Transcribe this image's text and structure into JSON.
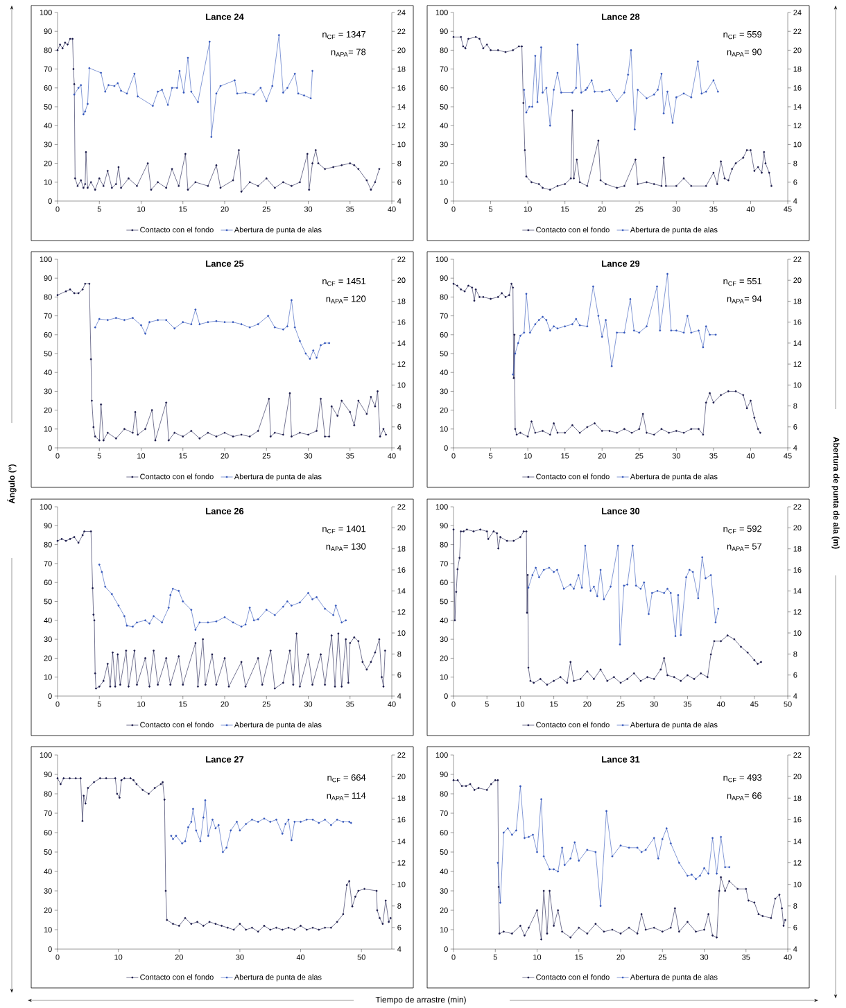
{
  "chart_data": [
    {
      "type": "line",
      "title": "Lance 24",
      "annotations": [
        "n$_{CF}$ = 1347",
        "n$_{APA}$= 78"
      ],
      "xlim": [
        0,
        40
      ],
      "xticks": [
        0,
        5,
        10,
        15,
        20,
        25,
        30,
        35,
        40
      ],
      "ylim": [
        0,
        100
      ],
      "yticks": [
        0,
        10,
        20,
        30,
        40,
        50,
        60,
        70,
        80,
        90,
        100
      ],
      "y2lim": [
        4,
        24
      ],
      "y2ticks": [
        4,
        6,
        8,
        10,
        12,
        14,
        16,
        18,
        20,
        22,
        24
      ],
      "legend": "bottom",
      "marker": "circle",
      "line_style": "solid",
      "series": [
        {
          "name": "Contacto con el fondo",
          "color": "#1a1a4a",
          "x": [
            0,
            0.3,
            0.6,
            0.9,
            1.2,
            1.5,
            1.8,
            1.9,
            2.0,
            2.1,
            2.4,
            2.8,
            3.1,
            3.3,
            3.4,
            3.6,
            4,
            4.5,
            5,
            5.5,
            6,
            6.5,
            7,
            7.3,
            7.6,
            8.5,
            9.5,
            10.8,
            11.2,
            12,
            13,
            13.7,
            14.5,
            15.3,
            15.6,
            16.5,
            18,
            19,
            19.5,
            21,
            21.7,
            22,
            23,
            24,
            25,
            26,
            27,
            28,
            29,
            29.9,
            30.1,
            30.5,
            30.9,
            31.2,
            32,
            33,
            34,
            35,
            35.5,
            36,
            37,
            37.5,
            38,
            38.5
          ],
          "values": [
            80,
            83,
            81,
            84,
            83,
            86,
            86,
            70,
            62,
            12,
            8,
            11,
            7,
            9,
            26,
            7,
            10,
            6,
            12,
            8,
            16,
            7,
            9,
            18,
            7,
            12,
            8,
            20,
            6,
            10,
            7,
            17,
            8,
            25,
            6,
            10,
            8,
            19,
            7,
            11,
            27,
            5,
            10,
            8,
            12,
            7,
            10,
            8,
            10,
            25,
            6,
            20,
            27,
            20,
            17,
            18,
            19,
            20,
            19,
            17,
            11,
            6,
            10,
            17
          ]
        },
        {
          "name": "Abertura de punta de alas",
          "color": "#3355bb",
          "axis": "y2",
          "x": [
            2.0,
            2.5,
            2.8,
            3.1,
            3.3,
            3.6,
            3.8,
            5.2,
            5.7,
            6.1,
            6.8,
            7.2,
            7.6,
            8.3,
            9.2,
            9.6,
            11.4,
            12,
            12.5,
            13.2,
            13.7,
            14.3,
            14.6,
            15.1,
            15.6,
            16,
            16.8,
            18.2,
            18.4,
            19,
            19.5,
            21.2,
            21.5,
            22.5,
            23.5,
            24.3,
            25,
            25.7,
            26.5,
            27,
            27.5,
            28.4,
            28.8,
            29.5,
            30.3,
            30.5
          ],
          "values": [
            15.3,
            16,
            16.3,
            13.2,
            13.5,
            14.3,
            18.1,
            17.6,
            15.6,
            16.3,
            16.2,
            16.5,
            15.7,
            15.4,
            17.5,
            15.1,
            14.1,
            15.6,
            15.8,
            14.2,
            16,
            16,
            17.8,
            15.5,
            19.2,
            15.6,
            14.5,
            20.9,
            10.8,
            15.4,
            16.2,
            16.8,
            15.4,
            15.5,
            15.3,
            16,
            14.6,
            16.2,
            21.6,
            15.5,
            16,
            17.5,
            15.4,
            15.2,
            14.9,
            17.8
          ]
        }
      ]
    },
    {
      "type": "line",
      "title": "Lance 28",
      "y2label": "Abertura de punta de ala (m)",
      "annotations": [
        "n$_{CF}$ = 559",
        "n$_{APA}$= 90"
      ],
      "xlim": [
        0,
        45
      ],
      "xticks": [
        0,
        5,
        10,
        15,
        20,
        25,
        30,
        35,
        40,
        45
      ],
      "ylim": [
        0,
        100
      ],
      "yticks": [
        0,
        10,
        20,
        30,
        40,
        50,
        60,
        70,
        80,
        90,
        100
      ],
      "y2lim": [
        4,
        24
      ],
      "y2ticks": [
        4,
        6,
        8,
        10,
        12,
        14,
        16,
        18,
        20,
        22,
        24
      ],
      "legend": "bottom",
      "marker": "circle",
      "line_style": "solid",
      "series": [
        {
          "name": "Contacto con el fondo",
          "color": "#1a1a4a",
          "x": [
            0,
            1,
            1.3,
            1.6,
            2,
            3,
            3.5,
            4,
            4.5,
            5,
            6,
            7,
            8,
            8.8,
            9.2,
            9.4,
            9.6,
            9.8,
            10.5,
            11.5,
            12,
            13,
            14,
            15,
            15.8,
            16,
            16.2,
            16.6,
            17,
            18,
            19.5,
            19.8,
            20.5,
            22,
            23,
            24.5,
            24.8,
            26,
            27,
            28,
            28.3,
            28.6,
            30,
            31,
            32,
            34,
            35,
            35.5,
            36,
            36.5,
            37,
            37.5,
            38,
            39,
            39.5,
            40,
            40.5,
            41,
            41.5,
            41.8,
            42,
            42.5,
            42.8
          ],
          "values": [
            87,
            87,
            82,
            81,
            86,
            87,
            86,
            81,
            83,
            80,
            80,
            79,
            80,
            82,
            82,
            52,
            27,
            13,
            10,
            9,
            7,
            6,
            8,
            9,
            12,
            48,
            12,
            22,
            10,
            8,
            32,
            11,
            9,
            7,
            8,
            22,
            9,
            10,
            9,
            8,
            23,
            8,
            8,
            12,
            8,
            8,
            15,
            9,
            21,
            12,
            11,
            17,
            20,
            23,
            27,
            27,
            16,
            18,
            15,
            26,
            20,
            15,
            8
          ]
        },
        {
          "name": "Abertura de punta de alas",
          "color": "#3355bb",
          "axis": "y2",
          "x": [
            9.5,
            9.8,
            10.2,
            10.6,
            11,
            11.3,
            11.8,
            12,
            12.5,
            13,
            13.5,
            14,
            14.5,
            16,
            16.5,
            16.7,
            17.2,
            17.8,
            18,
            18.6,
            19,
            20,
            21,
            22,
            23,
            23.5,
            23.9,
            24.4,
            24.8,
            26,
            27,
            27.5,
            28,
            28.3,
            28.8,
            29.5,
            30,
            31,
            32,
            32.9,
            33.4,
            34,
            35,
            35.6
          ],
          "values": [
            15.8,
            13.4,
            14,
            14,
            19.4,
            14.5,
            20.3,
            15.5,
            16,
            12,
            15.8,
            17.6,
            15.5,
            15.5,
            16,
            20.6,
            15.5,
            15.8,
            16,
            16.8,
            15.6,
            15.6,
            15.8,
            14.6,
            15.5,
            17.4,
            20,
            11.6,
            15.8,
            14.9,
            15.3,
            15.8,
            17.5,
            13.3,
            15.6,
            12.3,
            15,
            15.4,
            15,
            18.8,
            15.4,
            15.6,
            16.8,
            15.6
          ]
        }
      ]
    },
    {
      "type": "line",
      "title": "Lance 25",
      "ylabel": "Ángulo (°)",
      "annotations": [
        "n$_{CF}$ = 1451",
        "n$_{APA}$= 120"
      ],
      "xlim": [
        0,
        40
      ],
      "xticks": [
        0,
        5,
        10,
        15,
        20,
        25,
        30,
        35,
        40
      ],
      "ylim": [
        0,
        100
      ],
      "yticks": [
        0,
        10,
        20,
        30,
        40,
        50,
        60,
        70,
        80,
        90,
        100
      ],
      "y2lim": [
        4,
        22
      ],
      "y2ticks": [
        4,
        6,
        8,
        10,
        12,
        14,
        16,
        18,
        20,
        22
      ],
      "legend": "bottom",
      "marker": "circle",
      "line_style": "solid",
      "series": [
        {
          "name": "Contacto con el fondo",
          "color": "#1a1a4a",
          "x": [
            0,
            1,
            1.5,
            2,
            2.5,
            3,
            3.3,
            3.8,
            4,
            4.1,
            4.3,
            4.5,
            5,
            5.2,
            5.5,
            6,
            7,
            8,
            9,
            9.3,
            9.6,
            10.5,
            11.3,
            11.7,
            13,
            13.3,
            14,
            15,
            16,
            17,
            18,
            19,
            20,
            21,
            22,
            23,
            24,
            25.3,
            25.5,
            26,
            27,
            27.8,
            28,
            29,
            30,
            31,
            31.5,
            32,
            32.5,
            32.8,
            33.5,
            34,
            35,
            35.5,
            36,
            37,
            37.5,
            38,
            38.3,
            38.6,
            39,
            39.3
          ],
          "values": [
            81,
            83,
            84,
            82,
            82,
            84,
            87,
            87,
            47,
            25,
            11,
            6,
            4,
            23,
            4,
            8,
            5,
            10,
            8,
            19,
            7,
            10,
            20,
            4,
            24,
            4,
            8,
            6,
            9,
            5,
            8,
            6,
            8,
            6,
            7,
            6,
            9,
            26,
            6,
            8,
            7,
            29,
            6,
            8,
            7,
            9,
            26,
            6,
            6,
            22,
            17,
            25,
            19,
            12,
            25,
            18,
            27,
            22,
            30,
            6,
            10,
            7
          ]
        },
        {
          "name": "Abertura de punta de alas",
          "color": "#3355bb",
          "axis": "y2",
          "x": [
            4.5,
            5,
            6,
            7,
            8,
            9,
            10,
            10.5,
            11,
            12,
            13,
            14,
            15,
            16,
            16.5,
            17,
            18,
            19,
            20,
            21,
            22,
            23,
            24,
            25.2,
            26,
            27,
            27.5,
            28,
            28.4,
            29,
            29.7,
            30.2,
            30.6,
            31,
            31.5,
            32,
            32.5
          ],
          "values": [
            15.5,
            16.3,
            16.2,
            16.4,
            16.2,
            16.4,
            15.7,
            14.9,
            16,
            16.2,
            16.2,
            15.4,
            16,
            15.8,
            17.2,
            15.8,
            16,
            16.1,
            16,
            16,
            15.8,
            15.5,
            15.8,
            16.6,
            15.5,
            15.3,
            15.6,
            18.1,
            15.5,
            14.2,
            13,
            12.5,
            13.3,
            12.6,
            13.8,
            14,
            14
          ]
        }
      ]
    },
    {
      "type": "line",
      "title": "Lance 29",
      "annotations": [
        "n$_{CF}$ = 551",
        "n$_{APA}$= 94"
      ],
      "xlim": [
        0,
        45
      ],
      "xticks": [
        0,
        5,
        10,
        15,
        20,
        25,
        30,
        35,
        40,
        45
      ],
      "ylim": [
        0,
        100
      ],
      "yticks": [
        0,
        10,
        20,
        30,
        40,
        50,
        60,
        70,
        80,
        90,
        100
      ],
      "y2lim": [
        4,
        22
      ],
      "y2ticks": [
        4,
        6,
        8,
        10,
        12,
        14,
        16,
        18,
        20,
        22
      ],
      "legend": "bottom",
      "marker": "circle",
      "line_style": "solid",
      "series": [
        {
          "name": "Contacto con el fondo",
          "color": "#1a1a4a",
          "x": [
            0,
            0.5,
            1,
            1.5,
            2,
            2.5,
            2.8,
            3,
            3.5,
            4,
            5,
            6,
            6.5,
            7,
            7.5,
            7.8,
            8,
            8.1,
            8.2,
            8.3,
            8.5,
            9,
            10,
            10.5,
            11,
            12,
            13,
            13.5,
            14,
            15,
            16,
            17,
            18,
            19,
            20,
            21,
            22,
            23,
            24,
            25,
            25.5,
            26,
            27,
            28,
            29,
            30,
            31,
            32,
            33,
            33.6,
            34,
            34.5,
            35,
            36,
            37,
            38,
            39,
            39.5,
            40,
            40.5,
            41,
            41.3
          ],
          "values": [
            87,
            86,
            84,
            83,
            86,
            85,
            78,
            84,
            80,
            80,
            79,
            80,
            82,
            80,
            81,
            87,
            85,
            37,
            60,
            10,
            7,
            8,
            6,
            14,
            8,
            9,
            7,
            13,
            8,
            8,
            12,
            8,
            11,
            13,
            9,
            9,
            8,
            10,
            8,
            10,
            18,
            8,
            7,
            10,
            8,
            9,
            8,
            10,
            10,
            7,
            24,
            29,
            24,
            28,
            30,
            30,
            28,
            21,
            25,
            16,
            10,
            8
          ]
        },
        {
          "name": "Abertura de punta de alas",
          "color": "#3355bb",
          "axis": "y2",
          "x": [
            8,
            8.3,
            8.7,
            9,
            9.5,
            9.8,
            10.3,
            11,
            11.5,
            12,
            12.5,
            13,
            13.5,
            14,
            15,
            16,
            16.5,
            17,
            18,
            18.8,
            19.5,
            20,
            20.5,
            21.3,
            22,
            23,
            23.8,
            24.3,
            25,
            26,
            27.4,
            27.8,
            28.8,
            29.3,
            30,
            31,
            31.5,
            32,
            33,
            33.6,
            34,
            34.5,
            35.3
          ],
          "values": [
            11,
            13,
            14,
            14.7,
            15,
            18.7,
            15,
            15.8,
            16.2,
            16.5,
            16.2,
            15.2,
            15.6,
            15.4,
            15.6,
            15.8,
            16.3,
            15.7,
            15.6,
            19.4,
            16.6,
            14.6,
            16.2,
            11.8,
            15,
            15,
            18.2,
            15.2,
            15,
            15.6,
            19.4,
            15.2,
            20.6,
            15.2,
            15.2,
            15,
            16.6,
            15,
            15.2,
            13.6,
            15.6,
            14.8,
            14.8
          ]
        }
      ]
    },
    {
      "type": "line",
      "title": "Lance 26",
      "annotations": [
        "n$_{CF}$ = 1401",
        "n$_{APA}$= 130"
      ],
      "xlim": [
        0,
        40
      ],
      "xticks": [
        0,
        5,
        10,
        15,
        20,
        25,
        30,
        35,
        40
      ],
      "ylim": [
        0,
        100
      ],
      "yticks": [
        0,
        10,
        20,
        30,
        40,
        50,
        60,
        70,
        80,
        90,
        100
      ],
      "y2lim": [
        4,
        22
      ],
      "y2ticks": [
        4,
        6,
        8,
        10,
        12,
        14,
        16,
        18,
        20,
        22
      ],
      "legend": "bottom",
      "marker": "circle",
      "line_style": "solid",
      "series": [
        {
          "name": "Contacto con el fondo",
          "color": "#1a1a4a",
          "x": [
            0,
            0.5,
            1,
            1.5,
            2,
            2.5,
            3,
            3.2,
            4,
            4.2,
            4.3,
            4.4,
            4.5,
            4.6,
            5,
            5.5,
            6,
            6.3,
            6.6,
            6.9,
            7.2,
            7.5,
            8.2,
            8.5,
            9.2,
            9.5,
            10.5,
            11,
            11.5,
            12,
            13,
            13.5,
            14.5,
            15,
            16.5,
            16.8,
            17.4,
            17.7,
            18.5,
            19,
            20,
            20.5,
            22,
            22.5,
            24,
            24.5,
            25.5,
            26,
            27,
            27.8,
            28.2,
            28.6,
            29,
            30,
            30.5,
            31.5,
            32,
            32.8,
            33.2,
            33.6,
            34,
            34.5,
            34.8,
            35,
            35.5,
            36,
            36.5,
            37,
            37.5,
            38,
            38.5,
            38.8,
            39,
            39.2
          ],
          "values": [
            82,
            83,
            82,
            83,
            84,
            81,
            85,
            87,
            87,
            57,
            43,
            40,
            12,
            4,
            5,
            8,
            17,
            5,
            23,
            5,
            22,
            6,
            24,
            5,
            24,
            6,
            20,
            5,
            24,
            6,
            20,
            6,
            21,
            6,
            28,
            5,
            30,
            6,
            22,
            6,
            20,
            5,
            18,
            5,
            20,
            6,
            24,
            4,
            7,
            24,
            6,
            33,
            5,
            22,
            6,
            22,
            6,
            32,
            5,
            33,
            5,
            30,
            7,
            28,
            31,
            29,
            18,
            14,
            18,
            23,
            30,
            10,
            5,
            24
          ]
        },
        {
          "name": "Abertura de punta de alas",
          "color": "#3355bb",
          "axis": "y2",
          "x": [
            5,
            5.3,
            5.7,
            6.5,
            7.3,
            8,
            8.3,
            9,
            9.5,
            10.5,
            11,
            11.5,
            12.5,
            13.3,
            13.5,
            13.8,
            14.5,
            15,
            16,
            16.5,
            17,
            18,
            19,
            20,
            21,
            22,
            22.5,
            23,
            23.5,
            24,
            25,
            26,
            27,
            27.5,
            28,
            29,
            30,
            30.5,
            31,
            32,
            33,
            33.3,
            34,
            34.5
          ],
          "values": [
            16.5,
            15.8,
            14.4,
            13.7,
            12.6,
            11.6,
            10.7,
            10.6,
            11,
            11.2,
            10.9,
            11.6,
            11,
            12.4,
            13.6,
            14.2,
            14,
            13,
            12.2,
            10.3,
            11,
            11,
            11.1,
            11.5,
            11,
            10.6,
            10.8,
            12.4,
            11.2,
            11.3,
            12.2,
            11.7,
            12.5,
            13,
            12.6,
            12.9,
            13.8,
            13.2,
            13.4,
            12.3,
            11.7,
            12.6,
            11,
            11.2
          ]
        }
      ]
    },
    {
      "type": "line",
      "title": "Lance 30",
      "annotations": [
        "n$_{CF}$ = 592",
        "n$_{APA}$= 57"
      ],
      "xlim": [
        0,
        50
      ],
      "xticks": [
        0,
        5,
        10,
        15,
        20,
        25,
        30,
        35,
        40,
        45,
        50
      ],
      "ylim": [
        0,
        100
      ],
      "yticks": [
        0,
        10,
        20,
        30,
        40,
        50,
        60,
        70,
        80,
        90,
        100
      ],
      "y2lim": [
        4,
        22
      ],
      "y2ticks": [
        4,
        6,
        8,
        10,
        12,
        14,
        16,
        18,
        20,
        22
      ],
      "legend": "bottom",
      "marker": "circle",
      "line_style": "solid",
      "series": [
        {
          "name": "Contacto con el fondo",
          "color": "#1a1a4a",
          "x": [
            0,
            0.2,
            0.4,
            0.6,
            0.9,
            1.1,
            1.5,
            2,
            3,
            4,
            5,
            5.2,
            6,
            6.5,
            6.7,
            7,
            8,
            9,
            10,
            10.5,
            10.9,
            11,
            11.1,
            11.2,
            11.5,
            12,
            13,
            14,
            15,
            16,
            17,
            17.5,
            18,
            19,
            20,
            21,
            22,
            23,
            24,
            25,
            26,
            27,
            28,
            29,
            30,
            31,
            31.5,
            32,
            33,
            34,
            35,
            36,
            37,
            38,
            38.5,
            39,
            40,
            41,
            42,
            43,
            44,
            45,
            45.5,
            46
          ],
          "values": [
            88,
            40,
            55,
            67,
            73,
            87,
            87,
            88,
            87,
            88,
            87,
            83,
            87,
            86,
            78,
            84,
            82,
            82,
            84,
            87,
            87,
            44,
            64,
            15,
            8,
            7,
            9,
            6,
            8,
            10,
            7,
            18,
            8,
            9,
            13,
            9,
            14,
            8,
            10,
            7,
            9,
            12,
            8,
            10,
            9,
            14,
            20,
            11,
            10,
            8,
            11,
            9,
            12,
            10,
            22,
            29,
            29,
            32,
            30,
            26,
            23,
            19,
            17,
            18
          ]
        },
        {
          "name": "Abertura de punta de alas",
          "color": "#3355bb",
          "axis": "y2",
          "x": [
            11.2,
            11.8,
            12.3,
            12.8,
            13.5,
            14.3,
            15,
            15.5,
            16.5,
            17.5,
            18,
            18.7,
            19.2,
            19.7,
            20.5,
            21,
            21.5,
            22,
            22.5,
            23.5,
            24.6,
            24.9,
            25.5,
            26,
            26.8,
            27.3,
            28,
            28.5,
            29.2,
            29.7,
            30.5,
            31.5,
            32,
            32.5,
            33.2,
            33.6,
            34,
            34.8,
            35.3,
            35.8,
            36.6,
            37.2,
            37.7,
            38.5,
            39.2,
            39.6
          ],
          "values": [
            14.3,
            15.5,
            16.2,
            15.3,
            16,
            16.2,
            15.8,
            16,
            14.2,
            14.6,
            14.2,
            15.5,
            14.3,
            18.3,
            14,
            14.4,
            13.5,
            16,
            13.2,
            14.4,
            18.3,
            8.9,
            14.5,
            14.6,
            18.3,
            14.5,
            14.2,
            14.8,
            11.8,
            13.8,
            14,
            13.8,
            14.2,
            13.8,
            9.7,
            13.6,
            9.8,
            15.3,
            16,
            15.8,
            13.3,
            17.2,
            15.2,
            15.5,
            11,
            12.3
          ]
        }
      ]
    },
    {
      "type": "line",
      "title": "Lance 27",
      "xlabel": "Tiempo de arrastre (min)",
      "annotations": [
        "n$_{CF}$ = 664",
        "n$_{APA}$= 114"
      ],
      "xlim": [
        0,
        55
      ],
      "xticks": [
        0,
        10,
        20,
        30,
        40,
        50
      ],
      "ylim": [
        0,
        100
      ],
      "yticks": [
        0,
        10,
        20,
        30,
        40,
        50,
        60,
        70,
        80,
        90,
        100
      ],
      "y2lim": [
        4,
        22
      ],
      "y2ticks": [
        4,
        6,
        8,
        10,
        12,
        14,
        16,
        18,
        20,
        22
      ],
      "legend": "bottom",
      "marker": "circle",
      "line_style": "solid",
      "series": [
        {
          "name": "Contacto con el fondo",
          "color": "#1a1a4a",
          "x": [
            0,
            0.5,
            1,
            2,
            3,
            3.8,
            4.1,
            4.3,
            4.6,
            5,
            6,
            7,
            8,
            9.5,
            9.8,
            10.2,
            10.5,
            11,
            12,
            12.5,
            13,
            14,
            15,
            16,
            17,
            17.3,
            17.6,
            17.8,
            18,
            19,
            20,
            21,
            22,
            23,
            24,
            25,
            26,
            27,
            28,
            29,
            30,
            31,
            32,
            33,
            34,
            35,
            36,
            37,
            38,
            39,
            40,
            41,
            42,
            43,
            44,
            45,
            46,
            47,
            47.6,
            48,
            48.5,
            49,
            49.5,
            50.5,
            52.5,
            52.6,
            53,
            53.5,
            54,
            54.5,
            54.8
          ],
          "values": [
            88,
            85,
            88,
            88,
            88,
            88,
            66,
            79,
            75,
            83,
            86,
            88,
            88,
            88,
            80,
            78,
            87,
            88,
            88,
            87,
            85,
            82,
            80,
            83,
            85,
            86,
            77,
            30,
            15,
            13,
            12,
            16,
            13,
            14,
            12,
            14,
            13,
            12,
            11,
            10,
            13,
            10,
            11,
            9,
            12,
            10,
            11,
            10,
            11,
            10,
            12,
            10,
            11,
            10,
            11,
            11,
            14,
            18,
            33,
            35,
            22,
            27,
            30,
            31,
            30,
            20,
            16,
            13,
            25,
            14,
            16
          ]
        },
        {
          "name": "Abertura de punta de alas",
          "color": "#3355bb",
          "axis": "y2",
          "x": [
            18.7,
            19,
            19.5,
            20.5,
            21,
            21.5,
            22,
            22.3,
            22.8,
            23.5,
            24,
            24.3,
            24.8,
            25.5,
            26,
            26.5,
            27.2,
            27.8,
            28.5,
            29.5,
            30,
            31,
            32,
            33,
            34,
            35,
            36,
            37,
            37.5,
            38,
            38.5,
            39,
            40,
            41,
            42,
            43,
            44,
            45,
            46,
            47,
            48,
            48.3
          ],
          "values": [
            14.5,
            14.2,
            14.5,
            13.8,
            14,
            15.3,
            15.8,
            17,
            15,
            14,
            16.2,
            17.8,
            14.5,
            16,
            15.2,
            15.5,
            13,
            13.4,
            15,
            15.8,
            15,
            15.6,
            16,
            15.8,
            16.1,
            15.8,
            16,
            14.7,
            15.6,
            16,
            14.1,
            15.8,
            15.8,
            16,
            16,
            15.7,
            16,
            15.5,
            16,
            15.8,
            15.8,
            15.7
          ]
        }
      ]
    },
    {
      "type": "line",
      "title": "Lance 31",
      "annotations": [
        "n$_{CF}$ = 493",
        "n$_{APA}$= 66"
      ],
      "xlim": [
        0,
        40
      ],
      "xticks": [
        0,
        5,
        10,
        15,
        20,
        25,
        30,
        35,
        40
      ],
      "ylim": [
        0,
        100
      ],
      "yticks": [
        0,
        10,
        20,
        30,
        40,
        50,
        60,
        70,
        80,
        90,
        100
      ],
      "y2lim": [
        4,
        22
      ],
      "y2ticks": [
        4,
        6,
        8,
        10,
        12,
        14,
        16,
        18,
        20,
        22
      ],
      "legend": "bottom",
      "marker": "circle",
      "line_style": "solid",
      "series": [
        {
          "name": "Contacto con el fondo",
          "color": "#1a1a4a",
          "x": [
            0,
            0.5,
            1,
            1.5,
            2,
            2.5,
            3,
            4,
            4.5,
            5,
            5.3,
            5.4,
            5.5,
            6,
            7,
            8,
            8.5,
            9,
            10,
            10.5,
            10.8,
            11.2,
            11.5,
            12,
            12.5,
            13,
            14,
            15,
            16,
            17,
            18,
            19,
            20,
            21,
            22,
            22.5,
            23,
            24,
            25,
            26,
            26.5,
            27,
            28,
            29,
            30,
            30.5,
            31,
            31.5,
            31.8,
            32,
            32.5,
            33,
            34,
            35,
            35.3,
            36,
            36.5,
            37,
            38,
            38.5,
            39,
            39.3,
            39.5,
            39.7
          ],
          "values": [
            87,
            87,
            84,
            84,
            85,
            82,
            83,
            82,
            85,
            87,
            87,
            32,
            8,
            9,
            8,
            12,
            7,
            11,
            20,
            5,
            30,
            8,
            30,
            12,
            20,
            9,
            6,
            11,
            8,
            13,
            9,
            10,
            8,
            11,
            8,
            18,
            10,
            11,
            9,
            11,
            21,
            9,
            14,
            9,
            10,
            18,
            7,
            6,
            30,
            37,
            30,
            35,
            31,
            31,
            25,
            24,
            18,
            17,
            16,
            26,
            28,
            21,
            12,
            15
          ]
        },
        {
          "name": "Abertura de punta de alas",
          "color": "#3355bb",
          "axis": "y2",
          "x": [
            5.3,
            5.6,
            6,
            6.5,
            7,
            7.5,
            8,
            8.5,
            9,
            9.5,
            10,
            10.5,
            10.8,
            11.5,
            12,
            12.5,
            13,
            13.3,
            14,
            14.5,
            15,
            16,
            17,
            17.6,
            18.3,
            19,
            20,
            21,
            22,
            22.5,
            23,
            24,
            24.5,
            25,
            25.5,
            26,
            27,
            28,
            28.5,
            29,
            29.5,
            30,
            30.5,
            31,
            31.5,
            32,
            32.5,
            33
          ],
          "values": [
            12,
            8.3,
            14.8,
            15.2,
            14.6,
            15,
            19.1,
            14.3,
            14.4,
            14.6,
            13,
            17.9,
            12.6,
            11.4,
            11.4,
            11.2,
            13.4,
            11.8,
            12.4,
            13.9,
            12.2,
            13.2,
            13,
            8,
            16.8,
            12.6,
            13.6,
            13.4,
            13.4,
            13,
            13.2,
            14.3,
            12.4,
            14.2,
            15.2,
            13.8,
            12,
            10.8,
            10.9,
            10.5,
            10.8,
            11.5,
            11,
            14.3,
            11,
            14.4,
            11.6,
            11.6
          ]
        }
      ]
    }
  ]
}
